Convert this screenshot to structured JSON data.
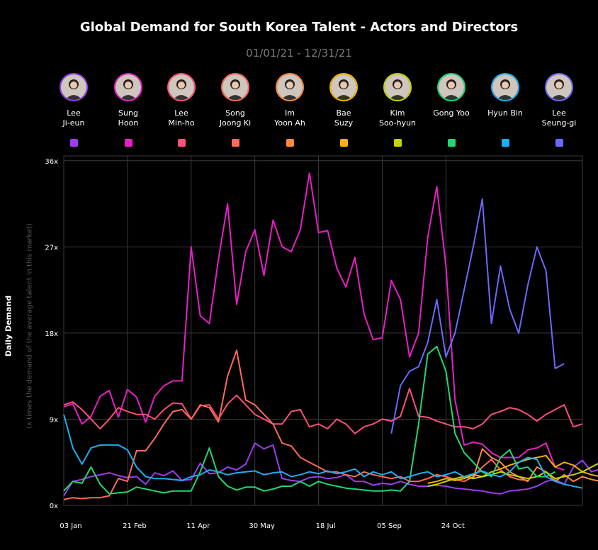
{
  "chart_data": {
    "type": "line",
    "title": "Global Demand for South Korea Talent - Actors and Directors",
    "subtitle": "01/01/21 - 12/31/21",
    "ylabel": "Daily Demand",
    "ylabel_sub": "(x times the demand of the average talent in this market)",
    "ylim": [
      0,
      36.5
    ],
    "yticks": [
      0,
      9,
      18,
      27,
      36
    ],
    "ytick_labels": [
      "0x",
      "9x",
      "18x",
      "27x",
      "36x"
    ],
    "xticks": [
      "03 Jan",
      "21 Feb",
      "11 Apr",
      "30 May",
      "18 Jul",
      "05 Sep",
      "24 Oct"
    ],
    "grid": true,
    "legend_position": "top",
    "series": [
      {
        "name": "Lee\nJi-eun",
        "color": "#9b3df2",
        "start": 0,
        "values": [
          1.0,
          2.5,
          2.7,
          3.0,
          3.2,
          3.4,
          3.1,
          2.9,
          3.0,
          2.2,
          3.4,
          3.1,
          3.6,
          2.6,
          2.7,
          4.4,
          3.3,
          3.4,
          4.0,
          3.7,
          4.3,
          6.5,
          5.9,
          6.3,
          2.8,
          2.6,
          2.5,
          2.9,
          3.0,
          2.8,
          2.9,
          3.2,
          2.5,
          2.5,
          2.1,
          2.3,
          2.2,
          2.5,
          2.2,
          2.0,
          2.0,
          2.1,
          2.0,
          1.8,
          1.7,
          1.6,
          1.5,
          1.3,
          1.2,
          1.5,
          1.6,
          1.7,
          2.0,
          2.5,
          2.7,
          2.2,
          4.0,
          4.7,
          3.5,
          3.8,
          5.0,
          2.5,
          2.8,
          3.4,
          2.2,
          2.0
        ]
      },
      {
        "name": "Sung\nHoon",
        "color": "#e91ec8",
        "start": 0,
        "values": [
          10.3,
          10.6,
          8.5,
          9.3,
          11.4,
          12.0,
          9.2,
          12.1,
          11.3,
          8.7,
          11.4,
          12.5,
          13.0,
          13.0,
          27.0,
          19.8,
          19.0,
          25.7,
          31.5,
          21.0,
          26.5,
          28.8,
          24.0,
          29.8,
          27.0,
          26.5,
          28.8,
          34.7,
          28.5,
          28.7,
          24.8,
          22.8,
          25.9,
          20.0,
          17.3,
          17.5,
          23.5,
          21.5,
          15.5,
          18.0,
          28.0,
          33.3,
          25.0,
          11.0,
          6.3,
          6.6,
          6.4,
          5.5,
          5.0,
          5.0,
          5.0,
          5.8,
          6.0,
          6.5,
          4.0,
          3.7
        ]
      },
      {
        "name": "Lee\nMin-ho",
        "color": "#ff4f7b",
        "start": 0,
        "values": [
          10.5,
          10.8,
          10.0,
          9.0,
          8.0,
          9.0,
          10.2,
          9.8,
          9.5,
          9.5,
          9.0,
          10.0,
          10.7,
          10.6,
          9.0,
          10.4,
          10.5,
          9.0,
          10.6,
          11.5,
          10.5,
          9.5,
          9.0,
          8.5,
          8.5,
          9.8,
          10.0,
          8.2,
          8.5,
          8.0,
          9.0,
          8.5,
          7.5,
          8.2,
          8.5,
          9.0,
          8.8,
          9.3,
          12.2,
          9.3,
          9.2,
          8.8,
          8.5,
          8.2,
          8.2,
          8.0,
          8.5,
          9.5,
          9.8,
          10.2,
          10.0,
          9.5,
          8.8,
          9.5,
          10.0,
          10.5,
          8.2,
          8.5
        ]
      },
      {
        "name": "Song\nJoong Ki",
        "color": "#ff6a5a",
        "start": 0,
        "values": [
          0.6,
          0.8,
          0.7,
          0.8,
          0.8,
          1.0,
          2.8,
          2.5,
          5.7,
          5.7,
          7.0,
          8.5,
          9.8,
          10.0,
          9.0,
          10.5,
          10.2,
          8.7,
          13.5,
          16.2,
          11.0,
          10.5,
          9.5,
          8.5,
          6.5,
          6.2,
          5.0,
          4.5,
          4.0,
          3.5,
          3.5,
          3.2,
          3.0,
          3.5,
          3.2,
          3.0,
          2.8,
          3.0,
          2.5,
          2.5,
          2.8,
          3.2,
          3.0,
          2.7,
          2.5,
          3.0,
          4.0,
          4.8,
          3.7,
          3.0,
          2.7,
          2.6
        ]
      },
      {
        "name": "Im\nYoon Ah",
        "color": "#ff8a3d",
        "start": 42,
        "values": [
          2.5,
          2.8,
          3.0,
          2.8,
          5.9,
          5.0,
          4.5,
          3.5,
          3.0,
          2.5,
          4.0,
          3.5,
          2.5,
          3.2,
          2.5,
          3.0,
          2.7,
          2.5,
          2.8,
          3.0,
          2.0,
          3.0
        ]
      },
      {
        "name": "Bae\nSuzy",
        "color": "#f5b400",
        "start": 40,
        "values": [
          2.3,
          2.5,
          2.8,
          2.6,
          2.8,
          3.2,
          3.0,
          3.5,
          3.8,
          4.2,
          4.5,
          4.8,
          5.0,
          5.2,
          4.0,
          4.5,
          4.2,
          3.5,
          3.2,
          3.0,
          2.8,
          2.8,
          4.5,
          3.0,
          2.5
        ]
      },
      {
        "name": "Kim\nSoo-hyun",
        "color": "#c3d600",
        "start": 40,
        "values": [
          2.0,
          2.2,
          2.5,
          2.8,
          3.0,
          2.8,
          3.0,
          3.2,
          3.5,
          3.2,
          3.0,
          2.8,
          3.0,
          3.5,
          2.8,
          3.0,
          3.2,
          3.5,
          4.0,
          4.5,
          5.0,
          4.0,
          3.0,
          3.5
        ]
      },
      {
        "name": "Gong Yoo",
        "color": "#1fd870",
        "start": 0,
        "values": [
          1.5,
          2.5,
          2.3,
          4.0,
          2.2,
          1.2,
          1.3,
          1.4,
          1.9,
          1.7,
          1.5,
          1.3,
          1.5,
          1.5,
          1.5,
          3.5,
          6.0,
          3.0,
          2.0,
          1.6,
          1.9,
          1.9,
          1.5,
          1.7,
          2.0,
          2.0,
          2.5,
          2.0,
          2.5,
          2.2,
          2.0,
          1.8,
          1.7,
          1.6,
          1.5,
          1.5,
          1.6,
          1.5,
          2.5,
          8.5,
          15.8,
          16.6,
          14.0,
          7.5,
          5.5,
          4.5,
          3.5,
          3.0,
          5.0,
          5.8,
          3.8,
          4.0,
          3.0,
          3.0,
          3.5
        ]
      },
      {
        "name": "Hyun Bin",
        "color": "#1ab0f0",
        "start": 0,
        "values": [
          9.5,
          6.0,
          4.3,
          6.0,
          6.3,
          6.3,
          6.3,
          5.8,
          4.0,
          3.0,
          2.8,
          2.8,
          2.7,
          2.6,
          3.0,
          3.2,
          3.7,
          3.5,
          3.2,
          3.4,
          3.5,
          3.6,
          3.2,
          3.4,
          3.5,
          3.0,
          3.2,
          3.5,
          3.3,
          3.6,
          3.3,
          3.5,
          3.8,
          3.0,
          3.5,
          3.2,
          3.5,
          2.8,
          3.0,
          3.3,
          3.5,
          3.0,
          3.2,
          3.5,
          3.0,
          3.3,
          3.6,
          3.2,
          3.0,
          3.5,
          4.5,
          5.0,
          4.8,
          3.0,
          2.5,
          2.2,
          2.0,
          1.8
        ]
      },
      {
        "name": "Lee\nSeung-gi",
        "color": "#6d68ff",
        "start": 36,
        "values": [
          7.5,
          12.5,
          14.0,
          14.5,
          17.0,
          21.5,
          15.5,
          18.0,
          22.5,
          27.0,
          32.0,
          19.0,
          25.0,
          20.5,
          18.0,
          23.0,
          27.0,
          24.5,
          14.3,
          14.8
        ]
      }
    ]
  },
  "people": [
    {
      "name": "Lee\nJi-eun",
      "ring": "#9b3df2"
    },
    {
      "name": "Sung\nHoon",
      "ring": "#e91ec8"
    },
    {
      "name": "Lee\nMin-ho",
      "ring": "#ff4f7b"
    },
    {
      "name": "Song\nJoong Ki",
      "ring": "#ff6a5a"
    },
    {
      "name": "Im\nYoon Ah",
      "ring": "#ff8a3d"
    },
    {
      "name": "Bae\nSuzy",
      "ring": "#f5b400"
    },
    {
      "name": "Kim\nSoo-hyun",
      "ring": "#c3d600"
    },
    {
      "name": "Gong Yoo",
      "ring": "#1fd870"
    },
    {
      "name": "Hyun Bin",
      "ring": "#1ab0f0"
    },
    {
      "name": "Lee\nSeung-gi",
      "ring": "#6d68ff"
    }
  ]
}
